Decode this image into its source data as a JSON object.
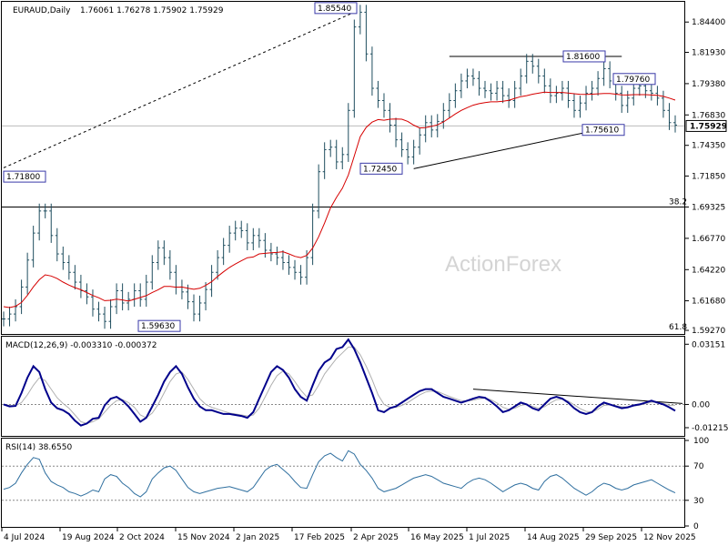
{
  "chart_data": {
    "type": "candlestick",
    "symbol_header": "EURAUD,Daily",
    "ohlc_text": "1.76061 1.76278 1.75902 1.75929",
    "watermark": "ActionForex",
    "current_price": "1.75929",
    "price_axis": [
      "1.84400",
      "1.81930",
      "1.79380",
      "1.76830",
      "1.74350",
      "1.71850",
      "1.69325",
      "1.66770",
      "1.64220",
      "1.61680",
      "1.59270"
    ],
    "price_ylim": [
      1.5905,
      1.859
    ],
    "date_axis": [
      "4 Jul 2024",
      "19 Aug 2024",
      "2 Oct 2024",
      "15 Nov 2024",
      "2 Jan 2025",
      "17 Feb 2025",
      "2 Apr 2025",
      "16 May 2025",
      "1 Jul 2025",
      "14 Aug 2025",
      "29 Sep 2025",
      "12 Nov 2025"
    ],
    "annotations": [
      {
        "text": "1.85540",
        "date": "2 Apr 2025",
        "price": 1.8554
      },
      {
        "text": "1.81600",
        "date": "Aug 2025",
        "price": 1.816
      },
      {
        "text": "1.79760",
        "date": "Oct 2025",
        "price": 1.7976
      },
      {
        "text": "1.75610",
        "date": "Sep 2025",
        "price": 1.7561
      },
      {
        "text": "1.72450",
        "date": "Apr 2025",
        "price": 1.7245
      },
      {
        "text": "1.71800",
        "date": "Jul 2024",
        "price": 1.718
      },
      {
        "text": "1.59630",
        "date": "Nov 2024",
        "price": 1.5963
      }
    ],
    "fib_levels": [
      {
        "text": "38.2",
        "price": 1.6932
      },
      {
        "text": "61.8",
        "price": 1.5905
      }
    ],
    "price_series": [
      1.602,
      1.606,
      1.612,
      1.628,
      1.65,
      1.672,
      1.69,
      1.69,
      1.67,
      1.655,
      1.648,
      1.64,
      1.632,
      1.625,
      1.62,
      1.61,
      1.606,
      1.6,
      1.612,
      1.625,
      1.615,
      1.618,
      1.625,
      1.618,
      1.632,
      1.648,
      1.66,
      1.652,
      1.64,
      1.628,
      1.624,
      1.616,
      1.606,
      1.615,
      1.626,
      1.64,
      1.652,
      1.662,
      1.672,
      1.676,
      1.674,
      1.664,
      1.67,
      1.666,
      1.658,
      1.655,
      1.652,
      1.648,
      1.644,
      1.64,
      1.636,
      1.652,
      1.69,
      1.722,
      1.74,
      1.742,
      1.73,
      1.736,
      1.772,
      1.84,
      1.852,
      1.818,
      1.79,
      1.78,
      1.772,
      1.76,
      1.748,
      1.74,
      1.734,
      1.742,
      1.752,
      1.762,
      1.756,
      1.763,
      1.772,
      1.78,
      1.788,
      1.796,
      1.8,
      1.798,
      1.79,
      1.788,
      1.786,
      1.79,
      1.784,
      1.78,
      1.79,
      1.8,
      1.812,
      1.808,
      1.8,
      1.792,
      1.784,
      1.786,
      1.79,
      1.78,
      1.772,
      1.778,
      1.786,
      1.79,
      1.798,
      1.806,
      1.796,
      1.786,
      1.776,
      1.782,
      1.79,
      1.792,
      1.788,
      1.786,
      1.782,
      1.772,
      1.762,
      1.76
    ],
    "ma_series": [
      1.612,
      1.6113,
      1.6124,
      1.6154,
      1.6212,
      1.6282,
      1.634,
      1.638,
      1.637,
      1.6349,
      1.632,
      1.6296,
      1.6275,
      1.6258,
      1.6235,
      1.6211,
      1.6193,
      1.6169,
      1.6172,
      1.6182,
      1.6175,
      1.6165,
      1.618,
      1.6195,
      1.621,
      1.6236,
      1.6258,
      1.6285,
      1.6285,
      1.6279,
      1.628,
      1.627,
      1.6262,
      1.627,
      1.6294,
      1.6323,
      1.6366,
      1.6404,
      1.644,
      1.6468,
      1.6494,
      1.6519,
      1.6525,
      1.655,
      1.6555,
      1.656,
      1.6562,
      1.6568,
      1.655,
      1.653,
      1.652,
      1.6538,
      1.6598,
      1.6689,
      1.6802,
      1.6925,
      1.701,
      1.7086,
      1.7193,
      1.7348,
      1.7506,
      1.7581,
      1.7624,
      1.7645,
      1.764,
      1.7648,
      1.765,
      1.7648,
      1.763,
      1.76,
      1.7577,
      1.758,
      1.759,
      1.7602,
      1.7626,
      1.7658,
      1.7691,
      1.772,
      1.7742,
      1.7762,
      1.7775,
      1.7784,
      1.779,
      1.779,
      1.7795,
      1.7802,
      1.7818,
      1.7832,
      1.784,
      1.7852,
      1.786,
      1.7868,
      1.7866,
      1.7866,
      1.7866,
      1.7862,
      1.7856,
      1.7851,
      1.785,
      1.7852,
      1.7855,
      1.7858,
      1.7858,
      1.7852,
      1.7846,
      1.7845,
      1.7848,
      1.7848,
      1.7848,
      1.7845,
      1.7842,
      1.7834,
      1.782,
      1.7804
    ],
    "macd": {
      "label": "MACD(12,26,9) -0.003310 -0.000372",
      "axis": [
        "0.03151",
        "0.00",
        "-0.012158"
      ],
      "ylim": [
        -0.0155,
        0.0345
      ],
      "values": [
        0.0,
        -0.001,
        -0.0008,
        0.006,
        0.014,
        0.02,
        0.017,
        0.008,
        0.001,
        -0.002,
        -0.003,
        -0.005,
        -0.0085,
        -0.011,
        -0.01,
        -0.0075,
        -0.007,
        -0.0005,
        0.003,
        0.004,
        0.002,
        -0.001,
        -0.005,
        -0.009,
        -0.007,
        -0.001,
        0.005,
        0.012,
        0.017,
        0.02,
        0.016,
        0.009,
        0.003,
        -0.001,
        -0.003,
        -0.003,
        -0.004,
        -0.005,
        -0.005,
        -0.0055,
        -0.006,
        -0.007,
        -0.004,
        0.003,
        0.01,
        0.017,
        0.02,
        0.018,
        0.014,
        0.008,
        0.004,
        0.002,
        0.01,
        0.0175,
        0.022,
        0.024,
        0.029,
        0.03,
        0.034,
        0.029,
        0.022,
        0.014,
        0.006,
        -0.003,
        -0.004,
        -0.002,
        -0.001,
        0.001,
        0.003,
        0.005,
        0.007,
        0.008,
        0.008,
        0.006,
        0.004,
        0.003,
        0.002,
        0.001,
        0.002,
        0.003,
        0.004,
        0.0035,
        0.0015,
        -0.001,
        -0.004,
        -0.003,
        -0.001,
        0.001,
        0.0,
        -0.002,
        -0.003,
        0.0,
        0.003,
        0.004,
        0.003,
        0.001,
        -0.002,
        -0.004,
        -0.005,
        -0.004,
        -0.001,
        0.001,
        0.0,
        -0.001,
        -0.002,
        -0.0015,
        -0.0005,
        0.0,
        0.001,
        0.002,
        0.001,
        0.0,
        -0.0015,
        -0.0033
      ],
      "signal": [
        0.0,
        -0.0005,
        -0.0007,
        0.001,
        0.005,
        0.01,
        0.014,
        0.0125,
        0.008,
        0.0035,
        0.0005,
        -0.002,
        -0.0055,
        -0.009,
        -0.01,
        -0.009,
        -0.0075,
        -0.004,
        -0.0005,
        0.002,
        0.0025,
        0.001,
        -0.0015,
        -0.0055,
        -0.007,
        -0.0045,
        0.0,
        0.006,
        0.012,
        0.016,
        0.017,
        0.013,
        0.008,
        0.003,
        0.0,
        -0.0015,
        -0.0025,
        -0.0035,
        -0.0045,
        -0.005,
        -0.0055,
        -0.006,
        -0.0055,
        -0.002,
        0.004,
        0.01,
        0.015,
        0.0175,
        0.016,
        0.012,
        0.0075,
        0.004,
        0.005,
        0.01,
        0.016,
        0.02,
        0.024,
        0.027,
        0.03,
        0.03,
        0.026,
        0.02,
        0.013,
        0.005,
        0.0,
        -0.0015,
        -0.0015,
        -0.0005,
        0.001,
        0.003,
        0.005,
        0.0065,
        0.007,
        0.0068,
        0.0055,
        0.0042,
        0.003,
        0.002,
        0.0018,
        0.0022,
        0.003,
        0.0033,
        0.0025,
        0.0008,
        -0.0015,
        -0.0025,
        -0.002,
        -0.0005,
        0.0,
        -0.001,
        -0.002,
        -0.0012,
        0.0008,
        0.0025,
        0.0028,
        0.0018,
        -0.0002,
        -0.0022,
        -0.0036,
        -0.004,
        -0.0025,
        -0.0005,
        -0.0002,
        -0.0006,
        -0.0012,
        -0.0013,
        -0.0009,
        -0.0004,
        0.0004,
        0.0012,
        0.0011,
        0.0005,
        -0.0005,
        -0.0004
      ]
    },
    "rsi": {
      "label": "RSI(14) 38.6550",
      "axis": [
        "100",
        "70",
        "30",
        "0"
      ],
      "ylim": [
        0,
        100
      ],
      "levels": [
        70,
        30
      ],
      "values": [
        43,
        45,
        50,
        62,
        72,
        80,
        78,
        62,
        52,
        48,
        45,
        40,
        38,
        35,
        38,
        42,
        40,
        55,
        60,
        58,
        50,
        45,
        38,
        34,
        40,
        55,
        62,
        68,
        70,
        65,
        55,
        45,
        40,
        38,
        40,
        42,
        44,
        45,
        46,
        44,
        42,
        40,
        45,
        55,
        65,
        70,
        72,
        66,
        60,
        52,
        45,
        44,
        60,
        75,
        82,
        85,
        80,
        76,
        88,
        84,
        72,
        65,
        56,
        44,
        40,
        42,
        44,
        48,
        52,
        56,
        58,
        60,
        58,
        54,
        50,
        48,
        46,
        44,
        50,
        54,
        56,
        54,
        50,
        45,
        40,
        44,
        48,
        50,
        48,
        44,
        42,
        52,
        58,
        60,
        56,
        50,
        44,
        40,
        36,
        40,
        46,
        50,
        48,
        44,
        42,
        44,
        48,
        50,
        52,
        54,
        50,
        46,
        42,
        38.7
      ]
    }
  }
}
